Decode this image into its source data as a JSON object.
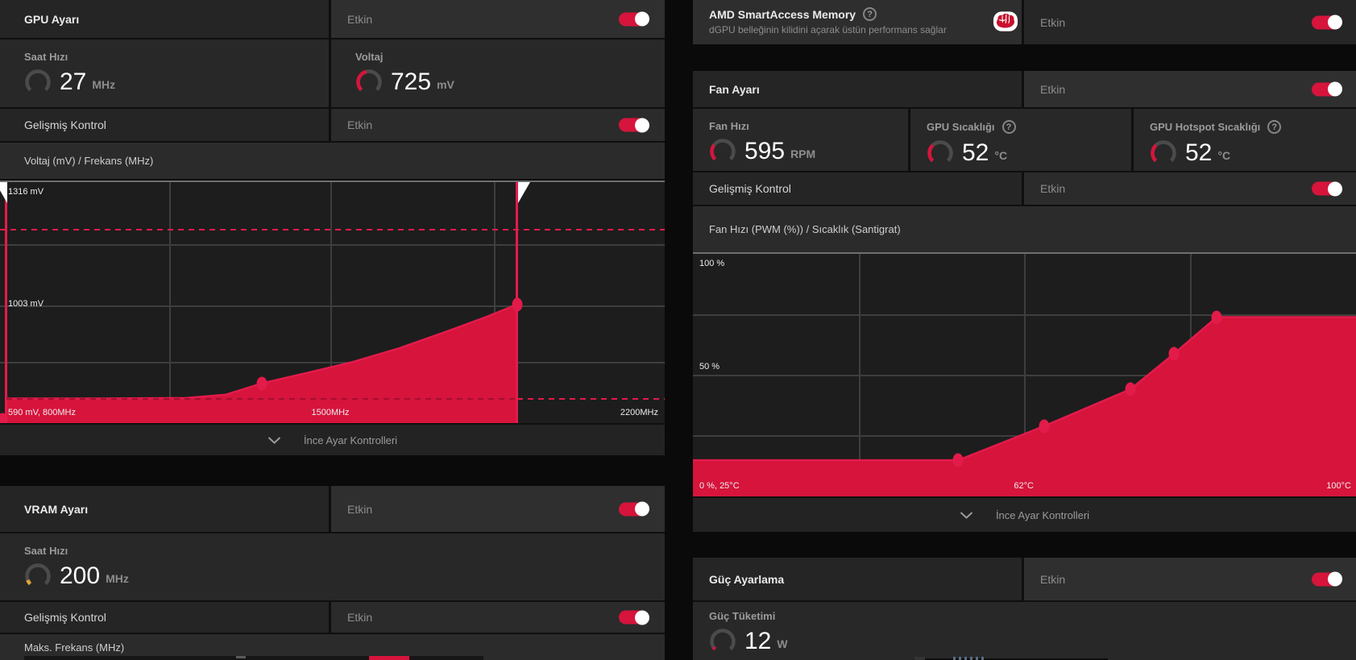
{
  "colors": {
    "accent": "#d6143c",
    "accent_bright": "#e31b4b",
    "accent_dark": "#a30f31",
    "vram_gauge_yellow": "#e2a43c",
    "gauge_track": "#4b4b4b"
  },
  "strings": {
    "enabled": "Etkin",
    "advanced_control": "Gelişmiş Kontrol",
    "fine_tune_controls": "İnce Ayar Kontrolleri",
    "help_glyph": "?"
  },
  "gpu": {
    "title": "GPU Ayarı",
    "clock": {
      "label": "Saat Hızı",
      "value": "27",
      "unit": "MHz",
      "gauge": {
        "pct": 0,
        "color": "#d6143c"
      }
    },
    "voltage": {
      "label": "Voltaj",
      "value": "725",
      "unit": "mV",
      "gauge": {
        "pct": 45,
        "color": "#d6143c"
      }
    },
    "curve_header": "Voltaj (mV) / Frekans (MHz)",
    "chart_labels": {
      "y_max": "1316 mV",
      "y_mid": "1003 mV",
      "origin": "590 mV, 800MHz",
      "x_mid": "1500MHz",
      "x_max": "2200MHz"
    }
  },
  "vram": {
    "title": "VRAM Ayarı",
    "clock": {
      "label": "Saat Hızı",
      "value": "200",
      "unit": "MHz",
      "gauge": {
        "pct": 9,
        "color": "#e2a43c"
      }
    },
    "max_freq_header": "Maks. Frekans (MHz)"
  },
  "sam": {
    "title": "AMD SmartAccess Memory",
    "subtitle": "dGPU belleğinin kilidini açarak üstün performans sağlar"
  },
  "fan": {
    "title": "Fan Ayarı",
    "fan_speed": {
      "label": "Fan Hızı",
      "value": "595",
      "unit": "RPM",
      "gauge": {
        "pct": 30,
        "color": "#d6143c"
      }
    },
    "gpu_temp": {
      "label": "GPU Sıcaklığı",
      "value": "52",
      "unit": "°C",
      "gauge": {
        "pct": 34,
        "color": "#d6143c"
      }
    },
    "hotspot_temp": {
      "label": "GPU Hotspot Sıcaklığı",
      "value": "52",
      "unit": "°C",
      "gauge": {
        "pct": 34,
        "color": "#d6143c"
      }
    },
    "curve_header": "Fan Hızı (PWM (%)) / Sıcaklık (Santigrat)",
    "chart_labels": {
      "y_max": "100 %",
      "y_mid": "50 %",
      "origin": "0 %, 25°C",
      "x_mid": "62°C",
      "x_max": "100°C"
    }
  },
  "power": {
    "title": "Güç Ayarlama",
    "consumption": {
      "label": "Güç Tüketimi",
      "value": "12",
      "unit": "W",
      "gauge": {
        "pct": 5,
        "color": "#d6143c"
      }
    }
  },
  "chart_data": [
    {
      "type": "area",
      "name": "voltage-frequency-curve",
      "title": "Voltaj (mV) / Frekans (MHz)",
      "xlabel": "Frekans (MHz)",
      "ylabel": "Voltaj (mV)",
      "x_ticks": [
        "800MHz",
        "1500MHz",
        "2200MHz"
      ],
      "y_tick_labels": [
        "1316 mV",
        "1003 mV",
        "590 mV"
      ],
      "points": [
        {
          "mhz": 800,
          "mv": 590
        },
        {
          "mhz": 1350,
          "mv": 805
        },
        {
          "mhz": 1890,
          "mv": 1003
        }
      ],
      "max_frequency_marker_mhz": 1890,
      "render": {
        "area": [
          [
            0.01,
            0.898
          ],
          [
            0.15,
            0.898
          ],
          [
            0.28,
            0.896
          ],
          [
            0.34,
            0.882
          ],
          [
            0.394,
            0.835
          ],
          [
            0.46,
            0.793
          ],
          [
            0.53,
            0.747
          ],
          [
            0.6,
            0.69
          ],
          [
            0.67,
            0.622
          ],
          [
            0.73,
            0.561
          ],
          [
            0.778,
            0.508
          ]
        ],
        "dots": [
          [
            0.394,
            0.835
          ],
          [
            0.778,
            0.508
          ],
          [
            0.004,
            0.985
          ]
        ],
        "close_x": [
          0.778,
          0.01
        ]
      }
    },
    {
      "type": "area",
      "name": "fan-curve",
      "title": "Fan Hızı (PWM (%)) / Sıcaklık (Santigrat)",
      "xlabel": "Sıcaklık (Santigrat)",
      "ylabel": "Fan Hızı (PWM %)",
      "x_ticks": [
        "25°C",
        "62°C",
        "100°C"
      ],
      "y_tick_labels": [
        "100 %",
        "50 %",
        "0 %"
      ],
      "points": [
        {
          "c": 55,
          "pct": 15
        },
        {
          "c": 65,
          "pct": 29
        },
        {
          "c": 75,
          "pct": 44
        },
        {
          "c": 79,
          "pct": 59
        },
        {
          "c": 84,
          "pct": 74
        }
      ],
      "render": {
        "area": [
          [
            0,
            0.851
          ],
          [
            0.4,
            0.851
          ],
          [
            0.53,
            0.71
          ],
          [
            0.66,
            0.558
          ],
          [
            0.725,
            0.413
          ],
          [
            0.79,
            0.261
          ],
          [
            1,
            0.261
          ]
        ],
        "dots": [
          [
            0.4,
            0.851
          ],
          [
            0.53,
            0.71
          ],
          [
            0.66,
            0.558
          ],
          [
            0.725,
            0.413
          ],
          [
            0.79,
            0.261
          ]
        ],
        "close_x": [
          1,
          0
        ]
      }
    }
  ]
}
